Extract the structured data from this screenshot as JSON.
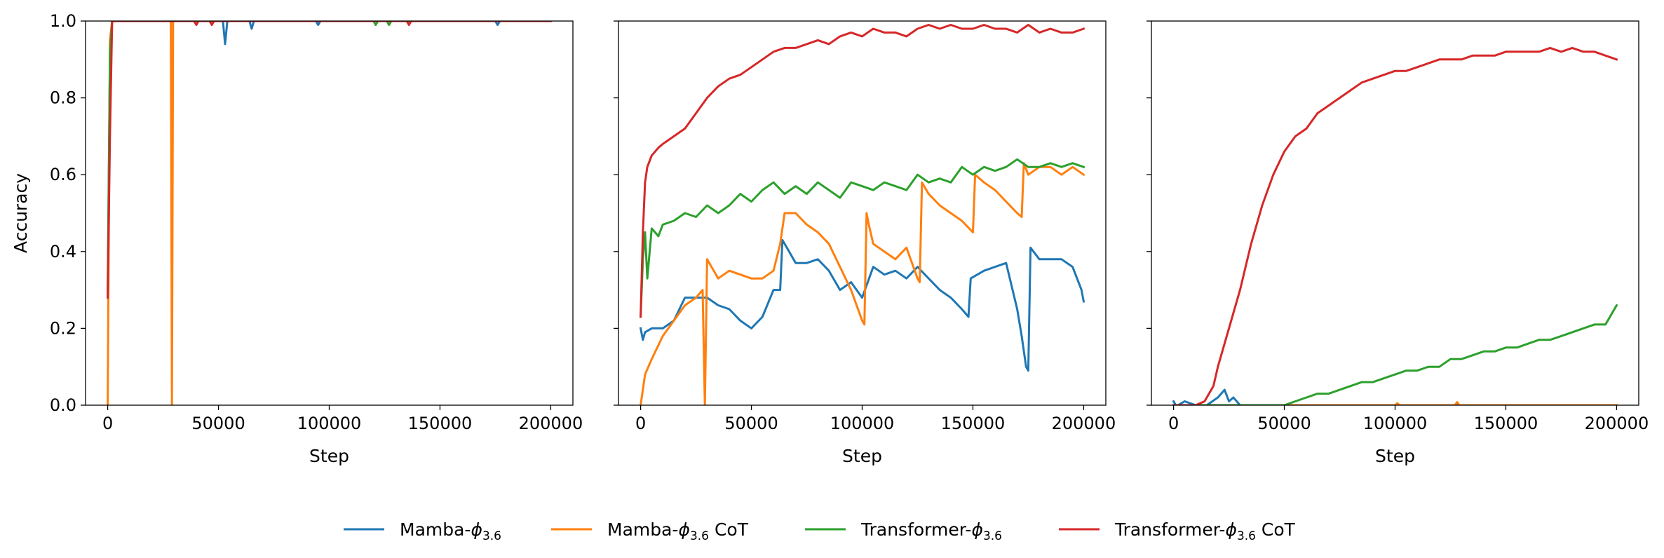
{
  "chart_data": [
    {
      "type": "line",
      "title": "",
      "xlabel": "Step",
      "ylabel": "Accuracy",
      "xlim": [
        -10000,
        210000
      ],
      "ylim": [
        0.0,
        1.0
      ],
      "xticks": [
        0,
        50000,
        100000,
        150000,
        200000
      ],
      "yticks": [
        0.0,
        0.2,
        0.4,
        0.6,
        0.8,
        1.0
      ],
      "xtick_labels": [
        "0",
        "50000",
        "100000",
        "150000",
        "200000"
      ],
      "ytick_labels": [
        "0.0",
        "0.2",
        "0.4",
        "0.6",
        "0.8",
        "1.0"
      ],
      "grid": false,
      "series": [
        {
          "name": "Mamba-ϕ_3.6",
          "color": "#1f77b4",
          "x": [
            0,
            1000,
            2000,
            3000,
            52000,
            53000,
            54000,
            64000,
            65000,
            66000,
            94000,
            95000,
            96000,
            175000,
            176000,
            177000,
            200000
          ],
          "y": [
            0.28,
            0.9,
            1.0,
            1.0,
            1.0,
            0.94,
            1.0,
            1.0,
            0.98,
            1.0,
            1.0,
            0.99,
            1.0,
            1.0,
            0.99,
            1.0,
            1.0
          ]
        },
        {
          "name": "Mamba-ϕ_3.6 CoT",
          "color": "#ff7f0e",
          "x": [
            0,
            1000,
            2000,
            3000,
            28000,
            28500,
            29000,
            29500,
            30000,
            200000
          ],
          "y": [
            0.0,
            0.95,
            1.0,
            1.0,
            1.0,
            1.0,
            0.0,
            1.0,
            1.0,
            1.0
          ]
        },
        {
          "name": "Transformer-ϕ_3.6",
          "color": "#2ca02c",
          "x": [
            0,
            1000,
            2000,
            3000,
            120000,
            121000,
            122000,
            126000,
            127000,
            128000,
            200000
          ],
          "y": [
            0.3,
            0.92,
            1.0,
            1.0,
            1.0,
            0.99,
            1.0,
            1.0,
            0.99,
            1.0,
            1.0
          ]
        },
        {
          "name": "Transformer-ϕ_3.6 CoT",
          "color": "#d62728",
          "x": [
            0,
            1000,
            2000,
            3000,
            39000,
            40000,
            41000,
            46000,
            47000,
            48000,
            135000,
            136000,
            137000,
            200000
          ],
          "y": [
            0.28,
            0.7,
            1.0,
            1.0,
            1.0,
            0.99,
            1.0,
            1.0,
            0.99,
            1.0,
            1.0,
            0.99,
            1.0,
            1.0
          ]
        }
      ]
    },
    {
      "type": "line",
      "title": "",
      "xlabel": "Step",
      "ylabel": "",
      "xlim": [
        -10000,
        210000
      ],
      "ylim": [
        0.0,
        1.0
      ],
      "xticks": [
        0,
        50000,
        100000,
        150000,
        200000
      ],
      "yticks": [
        0.0,
        0.2,
        0.4,
        0.6,
        0.8,
        1.0
      ],
      "xtick_labels": [
        "0",
        "50000",
        "100000",
        "150000",
        "200000"
      ],
      "ytick_labels": [],
      "grid": false,
      "series": [
        {
          "name": "Mamba-ϕ_3.6",
          "color": "#1f77b4",
          "x": [
            0,
            1000,
            2000,
            5000,
            10000,
            15000,
            20000,
            25000,
            30000,
            35000,
            40000,
            45000,
            50000,
            55000,
            60000,
            63000,
            64000,
            67000,
            70000,
            75000,
            80000,
            85000,
            90000,
            95000,
            100000,
            105000,
            110000,
            115000,
            120000,
            125000,
            130000,
            135000,
            140000,
            145000,
            148000,
            149000,
            155000,
            160000,
            165000,
            170000,
            172000,
            174000,
            175000,
            176000,
            180000,
            185000,
            190000,
            195000,
            199000,
            200000
          ],
          "y": [
            0.2,
            0.17,
            0.19,
            0.2,
            0.2,
            0.22,
            0.28,
            0.28,
            0.28,
            0.26,
            0.25,
            0.22,
            0.2,
            0.23,
            0.3,
            0.3,
            0.43,
            0.4,
            0.37,
            0.37,
            0.38,
            0.35,
            0.3,
            0.32,
            0.28,
            0.36,
            0.34,
            0.35,
            0.33,
            0.36,
            0.33,
            0.3,
            0.28,
            0.25,
            0.23,
            0.33,
            0.35,
            0.36,
            0.37,
            0.25,
            0.18,
            0.1,
            0.09,
            0.41,
            0.38,
            0.38,
            0.38,
            0.36,
            0.3,
            0.27
          ]
        },
        {
          "name": "Mamba-ϕ_3.6 CoT",
          "color": "#ff7f0e",
          "x": [
            0,
            2000,
            5000,
            10000,
            15000,
            20000,
            25000,
            28000,
            29000,
            30000,
            35000,
            40000,
            45000,
            50000,
            55000,
            60000,
            63000,
            65000,
            70000,
            75000,
            80000,
            85000,
            90000,
            95000,
            100000,
            101000,
            102000,
            103000,
            105000,
            110000,
            115000,
            120000,
            125000,
            126000,
            127000,
            130000,
            135000,
            140000,
            145000,
            150000,
            151000,
            155000,
            160000,
            165000,
            170000,
            172000,
            173000,
            175000,
            180000,
            185000,
            190000,
            195000,
            200000
          ],
          "y": [
            0.0,
            0.08,
            0.12,
            0.18,
            0.22,
            0.26,
            0.28,
            0.3,
            0.0,
            0.38,
            0.33,
            0.35,
            0.34,
            0.33,
            0.33,
            0.35,
            0.42,
            0.5,
            0.5,
            0.47,
            0.45,
            0.42,
            0.36,
            0.3,
            0.22,
            0.21,
            0.5,
            0.47,
            0.42,
            0.4,
            0.38,
            0.41,
            0.33,
            0.32,
            0.58,
            0.55,
            0.52,
            0.5,
            0.48,
            0.45,
            0.6,
            0.58,
            0.56,
            0.53,
            0.5,
            0.49,
            0.63,
            0.6,
            0.62,
            0.62,
            0.6,
            0.62,
            0.6
          ]
        },
        {
          "name": "Transformer-ϕ_3.6",
          "color": "#2ca02c",
          "x": [
            0,
            1000,
            2000,
            3000,
            5000,
            8000,
            10000,
            15000,
            20000,
            25000,
            30000,
            35000,
            40000,
            45000,
            50000,
            55000,
            60000,
            65000,
            70000,
            75000,
            80000,
            85000,
            90000,
            95000,
            100000,
            105000,
            110000,
            115000,
            120000,
            125000,
            130000,
            135000,
            140000,
            145000,
            150000,
            155000,
            160000,
            165000,
            170000,
            175000,
            180000,
            185000,
            190000,
            195000,
            200000
          ],
          "y": [
            0.23,
            0.38,
            0.45,
            0.33,
            0.46,
            0.44,
            0.47,
            0.48,
            0.5,
            0.49,
            0.52,
            0.5,
            0.52,
            0.55,
            0.53,
            0.56,
            0.58,
            0.55,
            0.57,
            0.55,
            0.58,
            0.56,
            0.54,
            0.58,
            0.57,
            0.56,
            0.58,
            0.57,
            0.56,
            0.6,
            0.58,
            0.59,
            0.58,
            0.62,
            0.6,
            0.62,
            0.61,
            0.62,
            0.64,
            0.62,
            0.62,
            0.63,
            0.62,
            0.63,
            0.62
          ]
        },
        {
          "name": "Transformer-ϕ_3.6 CoT",
          "color": "#d62728",
          "x": [
            0,
            1000,
            2000,
            3000,
            5000,
            8000,
            10000,
            15000,
            20000,
            25000,
            30000,
            35000,
            40000,
            45000,
            50000,
            55000,
            60000,
            65000,
            70000,
            75000,
            80000,
            85000,
            90000,
            95000,
            100000,
            105000,
            110000,
            115000,
            120000,
            125000,
            130000,
            135000,
            140000,
            145000,
            150000,
            155000,
            160000,
            165000,
            170000,
            175000,
            180000,
            185000,
            190000,
            195000,
            200000
          ],
          "y": [
            0.23,
            0.45,
            0.58,
            0.62,
            0.65,
            0.67,
            0.68,
            0.7,
            0.72,
            0.76,
            0.8,
            0.83,
            0.85,
            0.86,
            0.88,
            0.9,
            0.92,
            0.93,
            0.93,
            0.94,
            0.95,
            0.94,
            0.96,
            0.97,
            0.96,
            0.98,
            0.97,
            0.97,
            0.96,
            0.98,
            0.99,
            0.98,
            0.99,
            0.98,
            0.98,
            0.99,
            0.98,
            0.98,
            0.97,
            0.99,
            0.97,
            0.98,
            0.97,
            0.97,
            0.98
          ]
        }
      ]
    },
    {
      "type": "line",
      "title": "",
      "xlabel": "Step",
      "ylabel": "",
      "xlim": [
        -10000,
        210000
      ],
      "ylim": [
        0.0,
        1.0
      ],
      "xticks": [
        0,
        50000,
        100000,
        150000,
        200000
      ],
      "yticks": [
        0.0,
        0.2,
        0.4,
        0.6,
        0.8,
        1.0
      ],
      "xtick_labels": [
        "0",
        "50000",
        "100000",
        "150000",
        "200000"
      ],
      "ytick_labels": [],
      "grid": false,
      "series": [
        {
          "name": "Mamba-ϕ_3.6",
          "color": "#1f77b4",
          "x": [
            0,
            1000,
            2000,
            5000,
            10000,
            15000,
            20000,
            23000,
            25000,
            27000,
            30000,
            35000,
            200000
          ],
          "y": [
            0.01,
            0.0,
            0.0,
            0.01,
            0.0,
            0.0,
            0.02,
            0.04,
            0.01,
            0.02,
            0.0,
            0.0,
            0.0
          ]
        },
        {
          "name": "Mamba-ϕ_3.6 CoT",
          "color": "#ff7f0e",
          "x": [
            0,
            100000,
            101000,
            102000,
            127000,
            128000,
            129000,
            200000
          ],
          "y": [
            0.0,
            0.0,
            0.005,
            0.0,
            0.0,
            0.008,
            0.0,
            0.0
          ]
        },
        {
          "name": "Transformer-ϕ_3.6",
          "color": "#2ca02c",
          "x": [
            0,
            40000,
            45000,
            50000,
            55000,
            60000,
            65000,
            70000,
            75000,
            80000,
            85000,
            90000,
            95000,
            100000,
            105000,
            110000,
            115000,
            120000,
            125000,
            130000,
            135000,
            140000,
            145000,
            150000,
            155000,
            160000,
            165000,
            170000,
            175000,
            180000,
            185000,
            190000,
            195000,
            198000,
            200000
          ],
          "y": [
            0.0,
            0.0,
            0.0,
            0.0,
            0.01,
            0.02,
            0.03,
            0.03,
            0.04,
            0.05,
            0.06,
            0.06,
            0.07,
            0.08,
            0.09,
            0.09,
            0.1,
            0.1,
            0.12,
            0.12,
            0.13,
            0.14,
            0.14,
            0.15,
            0.15,
            0.16,
            0.17,
            0.17,
            0.18,
            0.19,
            0.2,
            0.21,
            0.21,
            0.24,
            0.26
          ]
        },
        {
          "name": "Transformer-ϕ_3.6 CoT",
          "color": "#d62728",
          "x": [
            0,
            10000,
            14000,
            18000,
            20000,
            25000,
            30000,
            35000,
            40000,
            45000,
            50000,
            55000,
            60000,
            65000,
            70000,
            75000,
            80000,
            85000,
            90000,
            95000,
            100000,
            105000,
            110000,
            115000,
            120000,
            125000,
            130000,
            135000,
            140000,
            145000,
            150000,
            155000,
            160000,
            165000,
            170000,
            175000,
            180000,
            185000,
            190000,
            195000,
            200000
          ],
          "y": [
            0.0,
            0.0,
            0.01,
            0.05,
            0.1,
            0.2,
            0.3,
            0.42,
            0.52,
            0.6,
            0.66,
            0.7,
            0.72,
            0.76,
            0.78,
            0.8,
            0.82,
            0.84,
            0.85,
            0.86,
            0.87,
            0.87,
            0.88,
            0.89,
            0.9,
            0.9,
            0.9,
            0.91,
            0.91,
            0.91,
            0.92,
            0.92,
            0.92,
            0.92,
            0.93,
            0.92,
            0.93,
            0.92,
            0.92,
            0.91,
            0.9
          ]
        }
      ]
    }
  ],
  "legend": {
    "placement": "bottom-center",
    "entries": [
      {
        "base": "Mamba-",
        "symbol": "ϕ",
        "sub": "3.6",
        "suffix": "",
        "color": "#1f77b4"
      },
      {
        "base": "Mamba-",
        "symbol": "ϕ",
        "sub": "3.6",
        "suffix": " CoT",
        "color": "#ff7f0e"
      },
      {
        "base": "Transformer-",
        "symbol": "ϕ",
        "sub": "3.6",
        "suffix": "",
        "color": "#2ca02c"
      },
      {
        "base": "Transformer-",
        "symbol": "ϕ",
        "sub": "3.6",
        "suffix": " CoT",
        "color": "#d62728"
      }
    ]
  }
}
